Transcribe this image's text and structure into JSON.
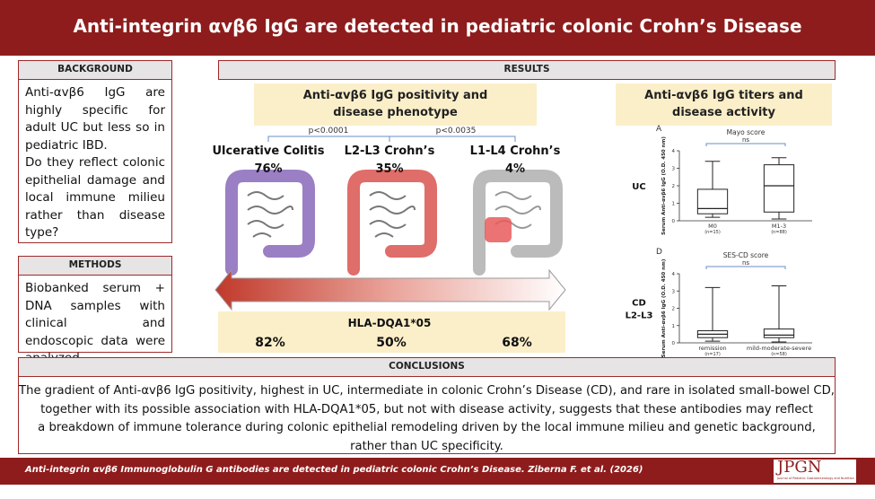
{
  "header": {
    "title": "Anti-integrin αvβ6 IgG are detected in pediatric colonic Crohn’s Disease"
  },
  "background": {
    "heading": "BACKGROUND",
    "paragraphs": [
      "Anti-αvβ6 IgG are highly specific for adult UC but less so in pediatric IBD.",
      "Do they reflect colonic epithelial damage and local immune milieu rather than disease type?"
    ]
  },
  "methods": {
    "heading": "METHODS",
    "text": "Biobanked serum + DNA samples with clinical and endoscopic data were analyzed."
  },
  "results": {
    "heading": "RESULTS",
    "phenotype": {
      "title": "Anti-αvβ6 IgG positivity and disease phenotype",
      "p_values": [
        "p<0.0001",
        "p<0.0035"
      ],
      "groups": [
        {
          "name": "Ulcerative Colitis",
          "positivity": "76%",
          "hla": "82%"
        },
        {
          "name": "L2-L3 Crohn’s",
          "positivity": "35%",
          "hla": "50%"
        },
        {
          "name": "L1-L4 Crohn’s",
          "positivity": "4%",
          "hla": "68%"
        }
      ],
      "hla_title": "HLA-DQA1*05"
    },
    "titers": {
      "title": "Anti-αvβ6 IgG titers and disease activity",
      "plots": [
        {
          "label": "A",
          "title": "Mayo score",
          "ns": "ns",
          "group": [
            "UC"
          ],
          "y_label": "Serum Anti-αvβ6 IgG (O.D. 450 nm)",
          "ylim": [
            0,
            4
          ],
          "yticks": [
            0,
            1,
            2,
            3,
            4
          ],
          "boxes": [
            {
              "name": "M0",
              "n": "(n=15)",
              "min": 0.2,
              "q1": 0.4,
              "median": 0.7,
              "q3": 1.8,
              "max": 3.4
            },
            {
              "name": "M1-3",
              "n": "(n=88)",
              "min": 0.1,
              "q1": 0.5,
              "median": 2.0,
              "q3": 3.2,
              "max": 3.6
            }
          ]
        },
        {
          "label": "D",
          "title": "SES-CD score",
          "ns": "ns",
          "group": [
            "CD",
            "L2-L3"
          ],
          "y_label": "Serum Anti-αvβ6 IgG (O.D. 450 nm)",
          "ylim": [
            0,
            4
          ],
          "yticks": [
            0,
            1,
            2,
            3,
            4
          ],
          "boxes": [
            {
              "name": "remission",
              "n": "(n=17)",
              "min": 0.1,
              "q1": 0.3,
              "median": 0.5,
              "q3": 0.7,
              "max": 3.2
            },
            {
              "name": "mild-moderate-severe",
              "n": "(n=58)",
              "min": 0.05,
              "q1": 0.3,
              "median": 0.45,
              "q3": 0.8,
              "max": 3.3
            }
          ]
        }
      ]
    }
  },
  "conclusions": {
    "heading": "CONCLUSIONS",
    "lines": [
      "The gradient of Anti-αvβ6 IgG positivity, highest in UC, intermediate in colonic Crohn’s Disease (CD), and rare in isolated small-bowel CD,",
      "together with its possible association with HLA-DQA1*05, but not with disease activity, suggests that these antibodies may reflect",
      "a breakdown of immune tolerance during colonic epithelial remodeling driven by the local immune milieu and genetic background,",
      "rather than UC specificity."
    ]
  },
  "footer": {
    "citation": "Anti-integrin αvβ6 Immunoglobulin G antibodies are detected in pediatric colonic Crohn’s Disease. Ziberna F. et al. (2026)",
    "logo": "JPGN",
    "logo_subtitle": "Journal of Pediatric Gastroenterology and Nutrition"
  }
}
